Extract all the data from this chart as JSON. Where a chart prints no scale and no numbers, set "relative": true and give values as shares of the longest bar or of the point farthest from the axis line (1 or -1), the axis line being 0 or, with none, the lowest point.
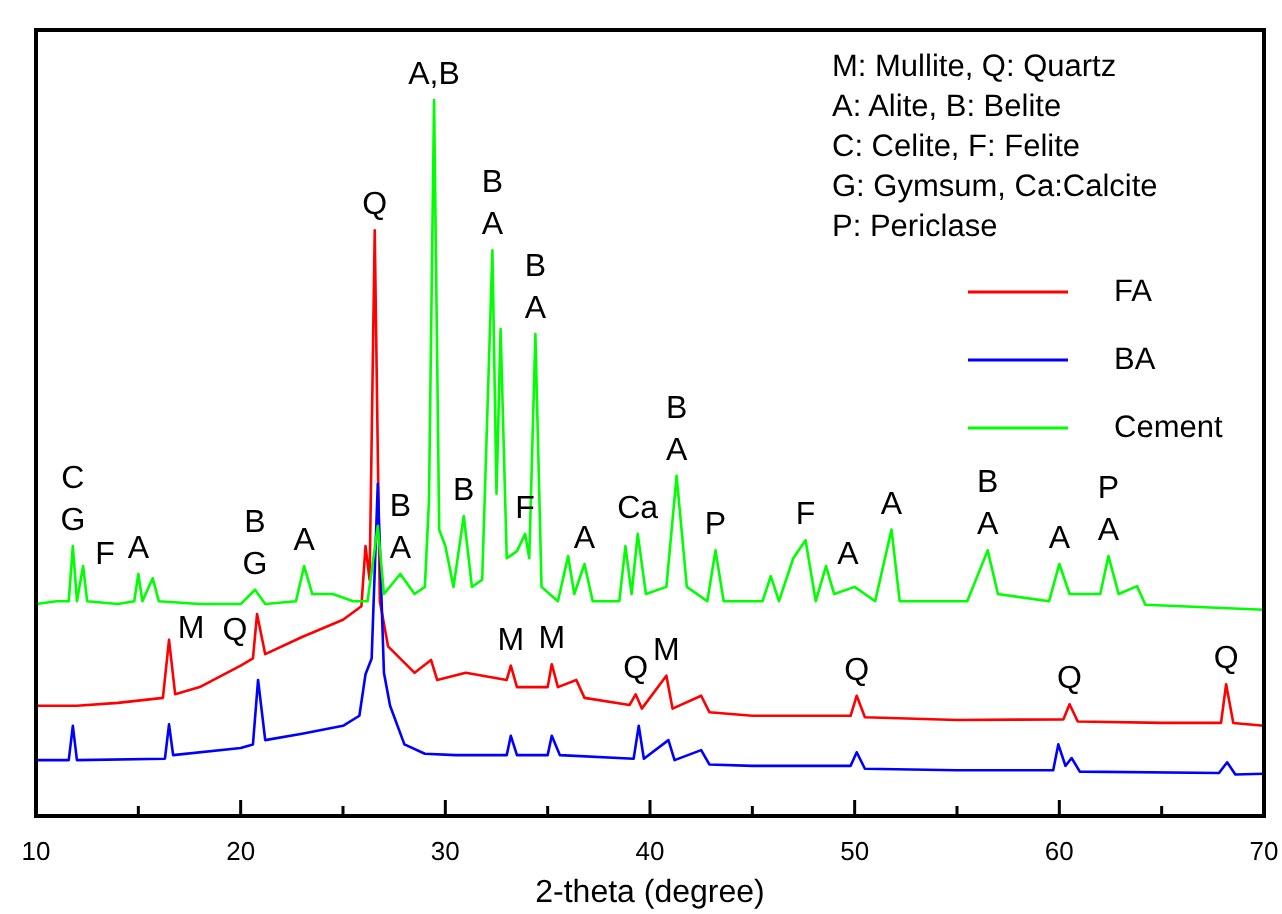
{
  "chart_data": {
    "type": "line",
    "relative": true,
    "xlabel": "2-theta (degree)",
    "xlim": [
      10,
      70
    ],
    "xticks": [
      10,
      {
        "value": 15,
        "label": null
      },
      20,
      {
        "value": 25,
        "label": null
      },
      30,
      {
        "value": 35,
        "label": null
      },
      40,
      {
        "value": 45,
        "label": null
      },
      50,
      {
        "value": 55,
        "label": null
      },
      60,
      {
        "value": 65,
        "label": null
      },
      70
    ],
    "legend": "top right",
    "grid": false,
    "marker": "none",
    "line_style": "solid",
    "series": [
      {
        "name": "FA",
        "color": "#ff0000",
        "x": [
          10,
          12,
          14,
          16.2,
          16.5,
          16.8,
          18,
          20,
          20.6,
          20.8,
          21.2,
          23,
          25,
          25.9,
          26.1,
          26.3,
          26.55,
          26.8,
          27.2,
          28.5,
          29.3,
          29.6,
          31,
          33,
          33.2,
          33.5,
          35,
          35.2,
          35.5,
          36.4,
          36.8,
          39,
          39.3,
          39.6,
          40.8,
          41.1,
          42.5,
          42.9,
          45,
          49.8,
          50.1,
          50.5,
          55,
          60.2,
          60.5,
          60.9,
          65,
          67.9,
          68.15,
          68.5,
          70
        ],
        "values": [
          0.154,
          0.154,
          0.158,
          0.165,
          0.246,
          0.17,
          0.18,
          0.21,
          0.22,
          0.282,
          0.226,
          0.25,
          0.274,
          0.293,
          0.377,
          0.33,
          0.818,
          0.3,
          0.237,
          0.2,
          0.218,
          0.19,
          0.2,
          0.19,
          0.21,
          0.18,
          0.18,
          0.212,
          0.18,
          0.19,
          0.165,
          0.155,
          0.17,
          0.15,
          0.196,
          0.15,
          0.168,
          0.145,
          0.14,
          0.14,
          0.168,
          0.138,
          0.134,
          0.135,
          0.156,
          0.132,
          0.13,
          0.13,
          0.184,
          0.13,
          0.126
        ]
      },
      {
        "name": "BA",
        "color": "#0000ff",
        "x": [
          10,
          11.6,
          11.8,
          12,
          16.3,
          16.5,
          16.7,
          20,
          20.6,
          20.85,
          21.2,
          23,
          25,
          25.8,
          26.1,
          26.4,
          26.7,
          27,
          27.3,
          28,
          29,
          30.5,
          33,
          33.2,
          33.5,
          35,
          35.2,
          35.6,
          39.2,
          39.45,
          39.7,
          40.9,
          41.2,
          42.5,
          42.9,
          45,
          49.8,
          50.1,
          50.5,
          55,
          59.7,
          59.95,
          60.3,
          60.6,
          61,
          67.8,
          68.2,
          68.6,
          70
        ],
        "values": [
          0.078,
          0.078,
          0.126,
          0.078,
          0.08,
          0.128,
          0.085,
          0.095,
          0.1,
          0.19,
          0.106,
          0.115,
          0.126,
          0.14,
          0.198,
          0.22,
          0.464,
          0.2,
          0.154,
          0.1,
          0.087,
          0.085,
          0.085,
          0.112,
          0.085,
          0.085,
          0.112,
          0.085,
          0.08,
          0.126,
          0.08,
          0.106,
          0.078,
          0.092,
          0.072,
          0.07,
          0.07,
          0.089,
          0.066,
          0.064,
          0.064,
          0.1,
          0.07,
          0.081,
          0.062,
          0.06,
          0.075,
          0.058,
          0.059
        ]
      },
      {
        "name": "Cement",
        "color": "#00ff00",
        "x": [
          10,
          11,
          11.6,
          11.8,
          12,
          12.3,
          12.5,
          14,
          14.8,
          15,
          15.2,
          15.7,
          16,
          18,
          20,
          20.7,
          21.2,
          22.7,
          23.1,
          23.5,
          24.5,
          25.5,
          26.2,
          26.7,
          27,
          27.8,
          28.5,
          29,
          29.2,
          29.45,
          29.7,
          30,
          30.4,
          30.9,
          31.3,
          31.8,
          32.3,
          32.5,
          32.7,
          33,
          33.5,
          33.9,
          34.1,
          34.4,
          34.7,
          35.5,
          36,
          36.3,
          36.8,
          37.2,
          38.5,
          38.8,
          39.1,
          39.4,
          39.8,
          40.8,
          41.3,
          41.8,
          42.8,
          43.2,
          43.6,
          45.5,
          45.9,
          46.3,
          47,
          47.6,
          48.1,
          48.6,
          49,
          50,
          51,
          51.8,
          52.2,
          55.5,
          56.5,
          57,
          59.5,
          60,
          60.5,
          62,
          62.4,
          62.9,
          63.8,
          64.2,
          70
        ],
        "values": [
          0.296,
          0.3,
          0.3,
          0.377,
          0.3,
          0.349,
          0.3,
          0.296,
          0.3,
          0.338,
          0.3,
          0.332,
          0.3,
          0.296,
          0.296,
          0.316,
          0.296,
          0.3,
          0.349,
          0.31,
          0.31,
          0.3,
          0.3,
          0.405,
          0.31,
          0.338,
          0.31,
          0.32,
          0.44,
          1,
          0.4,
          0.377,
          0.32,
          0.419,
          0.32,
          0.33,
          0.79,
          0.45,
          0.68,
          0.36,
          0.37,
          0.394,
          0.36,
          0.673,
          0.32,
          0.3,
          0.363,
          0.31,
          0.352,
          0.3,
          0.3,
          0.377,
          0.31,
          0.394,
          0.31,
          0.32,
          0.475,
          0.32,
          0.3,
          0.371,
          0.3,
          0.3,
          0.335,
          0.3,
          0.36,
          0.385,
          0.3,
          0.349,
          0.31,
          0.32,
          0.3,
          0.4,
          0.3,
          0.3,
          0.371,
          0.31,
          0.3,
          0.352,
          0.31,
          0.31,
          0.363,
          0.31,
          0.321,
          0.295,
          0.288
        ]
      }
    ],
    "annotations": [
      "M: Mullite, Q: Quartz",
      "A: Alite, B: Belite",
      "C: Celite, F: Felite",
      "G: Gymsum, Ca:Calcite",
      "P: Periclase",
      {
        "text": "C\nG",
        "x": 11.8,
        "y": 0.377
      },
      {
        "text": "F",
        "x": 12.3,
        "y": 0.349
      },
      {
        "text": "A",
        "x": 15,
        "y": 0.338
      },
      {
        "text": "B\nG",
        "x": 20.7,
        "y": 0.316
      },
      {
        "text": "A",
        "x": 23.1,
        "y": 0.349
      },
      {
        "text": "Q",
        "x": 26.55,
        "y": 0.818
      },
      {
        "text": "B\nA",
        "x": 27.8,
        "y": 0.338
      },
      {
        "text": "A,B",
        "x": 29.45,
        "y": 1
      },
      {
        "text": "B",
        "x": 30.9,
        "y": 0.419
      },
      {
        "text": "B\nA",
        "x": 32.3,
        "y": 0.79
      },
      {
        "text": "F",
        "x": 33.9,
        "y": 0.394
      },
      {
        "text": "B\nA",
        "x": 34.4,
        "y": 0.673
      },
      {
        "text": "A",
        "x": 36.8,
        "y": 0.352
      },
      {
        "text": "Ca",
        "x": 39.4,
        "y": 0.394
      },
      {
        "text": "B\nA",
        "x": 41.3,
        "y": 0.475
      },
      {
        "text": "P",
        "x": 43.2,
        "y": 0.371
      },
      {
        "text": "F",
        "x": 47.6,
        "y": 0.385
      },
      {
        "text": "A",
        "x": 48.6,
        "y": 0.349
      },
      {
        "text": "A",
        "x": 51.8,
        "y": 0.4
      },
      {
        "text": "B\nA",
        "x": 56.5,
        "y": 0.371
      },
      {
        "text": "A",
        "x": 60,
        "y": 0.352
      },
      {
        "text": "P\nA",
        "x": 62.4,
        "y": 0.363
      },
      {
        "text": "M",
        "x": 16.5,
        "y": 0.246
      },
      {
        "text": "Q",
        "x": 20.8,
        "y": 0.282
      },
      {
        "text": "M",
        "x": 33.2,
        "y": 0.21
      },
      {
        "text": "M",
        "x": 35.2,
        "y": 0.212
      },
      {
        "text": "Q",
        "x": 39.3,
        "y": 0.17
      },
      {
        "text": "M",
        "x": 40.8,
        "y": 0.196
      },
      {
        "text": "Q",
        "x": 50.1,
        "y": 0.168
      },
      {
        "text": "Q",
        "x": 60.5,
        "y": 0.156
      },
      {
        "text": "Q",
        "x": 68.15,
        "y": 0.184
      }
    ]
  }
}
